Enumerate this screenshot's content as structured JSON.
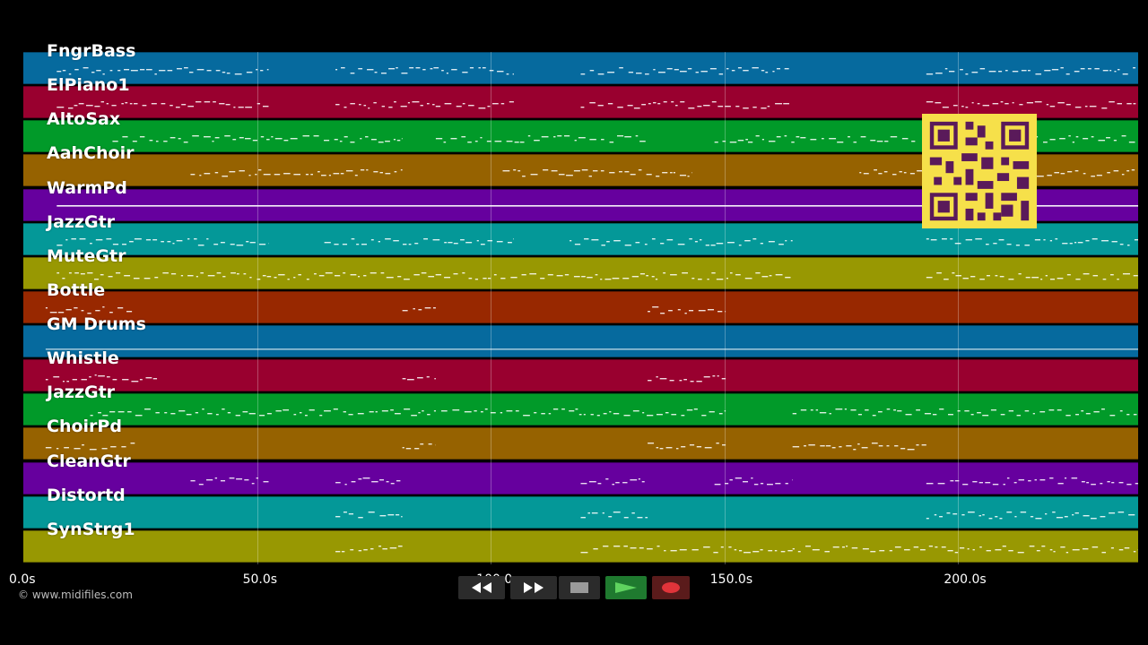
{
  "tracks": [
    {
      "label": "FngrBass",
      "color": "#066a9e"
    },
    {
      "label": "ElPiano1",
      "color": "#99002f"
    },
    {
      "label": "AltoSax",
      "color": "#019a29"
    },
    {
      "label": "AahChoir",
      "color": "#966200"
    },
    {
      "label": "WarmPd",
      "color": "#66009e"
    },
    {
      "label": "JazzGtr",
      "color": "#049898"
    },
    {
      "label": "MuteGtr",
      "color": "#989802"
    },
    {
      "label": "Bottle",
      "color": "#982800"
    },
    {
      "label": "GM Drums",
      "color": "#066a9e"
    },
    {
      "label": "Whistle",
      "color": "#99002f"
    },
    {
      "label": "JazzGtr",
      "color": "#019a29"
    },
    {
      "label": "ChoirPd",
      "color": "#966200"
    },
    {
      "label": "CleanGtr",
      "color": "#66009e"
    },
    {
      "label": "Distortd",
      "color": "#049898"
    },
    {
      "label": "SynStrg1",
      "color": "#989802"
    }
  ],
  "timeline": {
    "ticks": [
      "0.0s",
      "50.0s",
      "100.0s",
      "150.0s",
      "200.0s"
    ],
    "tick_values": [
      0,
      50,
      100,
      150,
      200
    ],
    "max_seconds": 238.5
  },
  "copyright": "© www.midifiles.com",
  "transport": {
    "rewind_icon": "rewind-icon",
    "fast_forward_icon": "fast-forward-icon",
    "stop_icon": "stop-icon",
    "play_icon": "play-icon",
    "record_icon": "record-icon",
    "colors": {
      "button_bg": "#2b2b2b",
      "play_bg": "#1f7a2f",
      "record_bg": "#5a1b1b"
    }
  },
  "qr_icon": "qr-code-icon",
  "note_color": "#ffffff"
}
